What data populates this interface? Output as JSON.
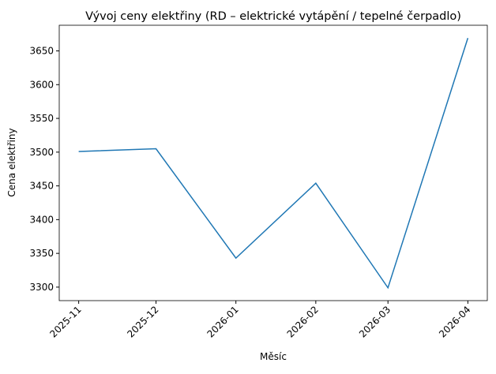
{
  "chart_data": {
    "type": "line",
    "title": "Vývoj ceny elektřiny (RD – elektrické vytápění / tepelné čerpadlo)",
    "x_label": "Měsíc",
    "y_label": "Cena elektřiny",
    "x": [
      "2025-11",
      "2025-12",
      "2026-01",
      "2026-02",
      "2026-03",
      "2026-04"
    ],
    "xticks": [
      "2025-11",
      "2025-12",
      "2026-01",
      "2026-02",
      "2026-03",
      "2026-04"
    ],
    "series": [
      {
        "name": "Cena elektřiny",
        "color": "#1f77b4",
        "values": [
          3501,
          3505,
          3343,
          3454,
          3299,
          3669
        ]
      }
    ],
    "ylim": [
      3280,
      3688
    ],
    "yticks": [
      3300,
      3350,
      3400,
      3450,
      3500,
      3550,
      3600,
      3650
    ],
    "grid": false
  }
}
